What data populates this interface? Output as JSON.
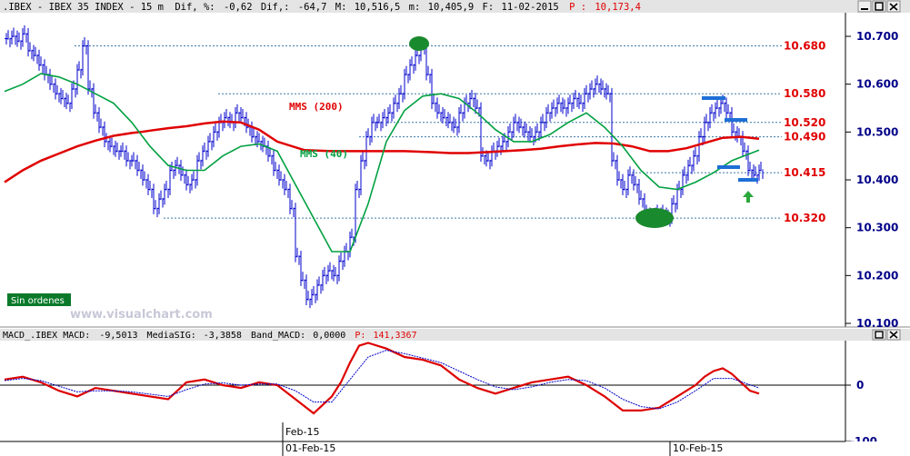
{
  "header": {
    "instrument": ".IBEX - IBEX 35 INDEX -  15 m",
    "diff_label": "Dif, %:",
    "diff_pct": "-0,62",
    "diff_abs_label": "Dif,:",
    "diff_abs": "-64,7",
    "max_label": "M:",
    "max": "10,516,5",
    "min_label": "m:",
    "min": "10,405,9",
    "date_label": "F:",
    "date": "11-02-2015",
    "price_label": "P :",
    "price": "10,173,4"
  },
  "macd_header": {
    "label": "MACD_.IBEX MACD:",
    "macd": "-9,5013",
    "sig_label": "MediaSIG:",
    "sig": "-3,3858",
    "band_label": "Band_MACD:",
    "band": "0,0000",
    "price_label": "P:",
    "price": "141,3367"
  },
  "watermark": "www.visualchart.com",
  "orders_badge": "Sin ordenes",
  "window_buttons": [
    "minimize",
    "maximize",
    "close"
  ],
  "colors": {
    "price_bars": "#0000cc",
    "mms200": "#e00000",
    "mms40": "#00a040",
    "level_label": "#e00000",
    "marker_green": "#1a8a2e",
    "marker_blue": "#1e6fd6",
    "macd_line": "#dd0000",
    "signal_line": "#0000cc",
    "axis_text": "#000088",
    "header_bg": "#e4e4e4"
  },
  "chart_data": [
    {
      "type": "line",
      "title": "IBEX 35 INDEX 15 m",
      "xlabel": "",
      "ylabel": "",
      "yticks": [
        "10.700",
        "10.600",
        "10.500",
        "10.400",
        "10.300",
        "10.200",
        "10.100"
      ],
      "xticks": [
        "01-Feb-15",
        "10-Feb-15"
      ],
      "ylim": [
        10100,
        10740
      ],
      "series": [
        {
          "name": "MMS (200)",
          "x": [
            0,
            20,
            40,
            60,
            80,
            100,
            120,
            140,
            150,
            160,
            180,
            200,
            220,
            240,
            260,
            280,
            300,
            330,
            360,
            400,
            440,
            470,
            490,
            510,
            530,
            550,
            570,
            590,
            610,
            630,
            650,
            670,
            690,
            710,
            730,
            750,
            770,
            790,
            810,
            830
          ],
          "values": [
            10395,
            10420,
            10440,
            10455,
            10470,
            10482,
            10492,
            10498,
            10500,
            10503,
            10508,
            10512,
            10518,
            10522,
            10520,
            10505,
            10480,
            10462,
            10460,
            10460,
            10460,
            10458,
            10456,
            10456,
            10458,
            10460,
            10462,
            10465,
            10470,
            10474,
            10477,
            10476,
            10470,
            10460,
            10460,
            10466,
            10477,
            10488,
            10490,
            10486
          ]
        },
        {
          "name": "MMS (40)",
          "x": [
            0,
            20,
            40,
            60,
            80,
            100,
            120,
            140,
            160,
            180,
            200,
            220,
            240,
            260,
            280,
            300,
            320,
            340,
            360,
            380,
            400,
            420,
            440,
            460,
            480,
            500,
            520,
            540,
            560,
            580,
            600,
            620,
            640,
            660,
            680,
            700,
            720,
            740,
            760,
            780,
            800,
            830
          ],
          "values": [
            10585,
            10600,
            10622,
            10615,
            10600,
            10580,
            10560,
            10520,
            10470,
            10430,
            10420,
            10420,
            10450,
            10470,
            10475,
            10460,
            10390,
            10320,
            10250,
            10250,
            10350,
            10480,
            10545,
            10575,
            10580,
            10570,
            10540,
            10505,
            10480,
            10480,
            10495,
            10520,
            10540,
            10510,
            10470,
            10420,
            10385,
            10380,
            10395,
            10415,
            10440,
            10462
          ]
        }
      ],
      "price_bars": {
        "x": [
          2,
          8,
          14,
          20,
          26,
          32,
          38,
          44,
          50,
          56,
          62,
          68,
          74,
          80,
          86,
          92,
          98,
          104,
          110,
          116,
          122,
          128,
          134,
          140,
          146,
          152,
          158,
          164,
          170,
          176,
          182,
          188,
          194,
          200,
          206,
          212,
          218,
          224,
          230,
          236,
          242,
          248,
          254,
          260,
          266,
          272,
          278,
          284,
          290,
          296,
          302,
          308,
          314,
          320,
          326,
          332,
          338,
          344,
          350,
          356,
          362,
          368,
          374,
          380,
          386,
          392,
          398,
          404,
          410,
          416,
          422,
          428,
          434,
          440,
          446,
          452,
          458,
          464,
          470,
          476,
          482,
          488,
          494,
          500,
          506,
          512,
          518,
          524,
          530,
          536,
          542,
          548,
          554,
          560,
          566,
          572,
          578,
          584,
          590,
          596,
          602,
          608,
          614,
          620,
          626,
          632,
          638,
          644,
          650,
          656,
          662,
          668,
          674,
          680,
          686,
          692,
          698,
          704,
          710,
          716,
          722,
          728,
          734,
          740,
          746,
          752,
          758,
          764,
          770,
          776,
          782,
          788,
          794,
          800,
          806,
          812,
          818,
          824,
          830
        ],
        "values": [
          10695,
          10700,
          10690,
          10705,
          10670,
          10660,
          10640,
          10620,
          10600,
          10580,
          10570,
          10560,
          10590,
          10630,
          10680,
          10590,
          10540,
          10510,
          10480,
          10470,
          10460,
          10460,
          10440,
          10440,
          10420,
          10400,
          10380,
          10340,
          10360,
          10380,
          10420,
          10430,
          10410,
          10390,
          10400,
          10440,
          10460,
          10480,
          10500,
          10520,
          10530,
          10520,
          10540,
          10530,
          10510,
          10490,
          10480,
          10470,
          10450,
          10420,
          10400,
          10380,
          10340,
          10240,
          10190,
          10150,
          10160,
          10180,
          10200,
          10210,
          10200,
          10230,
          10250,
          10280,
          10380,
          10440,
          10490,
          10520,
          10520,
          10530,
          10540,
          10560,
          10580,
          10620,
          10640,
          10660,
          10680,
          10620,
          10560,
          10540,
          10530,
          10520,
          10510,
          10540,
          10560,
          10570,
          10550,
          10450,
          10440,
          10460,
          10470,
          10480,
          10500,
          10520,
          10510,
          10500,
          10490,
          10500,
          10520,
          10540,
          10550,
          10560,
          10550,
          10560,
          10570,
          10560,
          10580,
          10590,
          10600,
          10590,
          10580,
          10440,
          10400,
          10380,
          10410,
          10390,
          10360,
          10330,
          10320,
          10330,
          10330,
          10320,
          10350,
          10380,
          10410,
          10430,
          10450,
          10490,
          10520,
          10540,
          10550,
          10560,
          10540,
          10500,
          10490,
          10460,
          10420,
          10410,
          10420
        ]
      },
      "levels": [
        {
          "label": "10.680",
          "value": 10680
        },
        {
          "label": "10.580",
          "value": 10580
        },
        {
          "label": "10.520",
          "value": 10520
        },
        {
          "label": "10.490",
          "value": 10490
        },
        {
          "label": "10.415",
          "value": 10415
        },
        {
          "label": "10.320",
          "value": 10320
        }
      ]
    },
    {
      "type": "line",
      "title": "MACD",
      "yticks": [
        "0",
        "-100"
      ],
      "ylim": [
        -110,
        85
      ],
      "series": [
        {
          "name": "MACD",
          "x": [
            0,
            20,
            40,
            60,
            80,
            100,
            120,
            140,
            160,
            180,
            200,
            220,
            240,
            260,
            280,
            300,
            320,
            340,
            360,
            370,
            380,
            390,
            400,
            420,
            440,
            460,
            480,
            500,
            520,
            540,
            560,
            580,
            600,
            620,
            640,
            660,
            680,
            700,
            720,
            740,
            760,
            770,
            780,
            790,
            800,
            810,
            820,
            830
          ],
          "values": [
            10,
            15,
            5,
            -10,
            -20,
            -5,
            -10,
            -15,
            -20,
            -25,
            5,
            10,
            0,
            -5,
            5,
            0,
            -25,
            -50,
            -20,
            5,
            40,
            70,
            75,
            65,
            50,
            45,
            35,
            10,
            -5,
            -15,
            -5,
            5,
            10,
            15,
            0,
            -20,
            -45,
            -45,
            -40,
            -20,
            0,
            15,
            25,
            30,
            20,
            5,
            -10,
            -15
          ]
        },
        {
          "name": "MediaSIG",
          "x": [
            0,
            20,
            40,
            60,
            80,
            100,
            120,
            140,
            160,
            180,
            200,
            220,
            240,
            260,
            280,
            300,
            320,
            340,
            360,
            380,
            400,
            420,
            440,
            460,
            480,
            500,
            520,
            540,
            560,
            580,
            600,
            620,
            640,
            660,
            680,
            700,
            720,
            740,
            760,
            780,
            800,
            830
          ],
          "values": [
            8,
            12,
            8,
            -2,
            -12,
            -10,
            -10,
            -12,
            -16,
            -20,
            -8,
            2,
            4,
            0,
            2,
            2,
            -10,
            -30,
            -30,
            10,
            50,
            62,
            56,
            48,
            40,
            25,
            10,
            -3,
            -8,
            -3,
            5,
            10,
            8,
            -5,
            -25,
            -38,
            -42,
            -30,
            -10,
            12,
            12,
            -5
          ]
        }
      ]
    }
  ]
}
